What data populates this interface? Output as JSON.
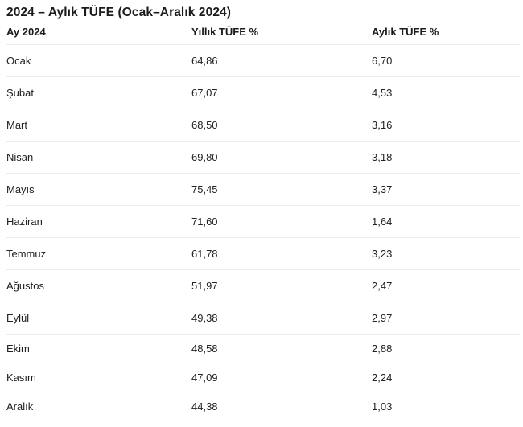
{
  "page": {
    "title": "2024 – Aylık TÜFE (Ocak–Aralık 2024)"
  },
  "table": {
    "columns": [
      "Ay 2024",
      "Yıllık TÜFE %",
      "Aylık TÜFE %"
    ],
    "rows": [
      {
        "month": "Ocak",
        "yillik": "64,86",
        "aylik": "6,70"
      },
      {
        "month": "Şubat",
        "yillik": "67,07",
        "aylik": "4,53"
      },
      {
        "month": "Mart",
        "yillik": "68,50",
        "aylik": "3,16"
      },
      {
        "month": "Nisan",
        "yillik": "69,80",
        "aylik": "3,18"
      },
      {
        "month": "Mayıs",
        "yillik": "75,45",
        "aylik": "3,37"
      },
      {
        "month": "Haziran",
        "yillik": "71,60",
        "aylik": "1,64"
      },
      {
        "month": "Temmuz",
        "yillik": "61,78",
        "aylik": "3,23"
      },
      {
        "month": "Ağustos",
        "yillik": "51,97",
        "aylik": "2,47"
      },
      {
        "month": "Eylül",
        "yillik": "49,38",
        "aylik": "2,97"
      },
      {
        "month": "Ekim",
        "yillik": "48,58",
        "aylik": "2,88"
      },
      {
        "month": "Kasım",
        "yillik": "47,09",
        "aylik": "2,24"
      },
      {
        "month": "Aralık",
        "yillik": "44,38",
        "aylik": "1,03"
      }
    ]
  },
  "chart_data": {
    "type": "table",
    "title": "2024 – Aylık TÜFE (Ocak–Aralık 2024)",
    "columns": [
      "Ay 2024",
      "Yıllık TÜFE %",
      "Aylık TÜFE %"
    ],
    "categories": [
      "Ocak",
      "Şubat",
      "Mart",
      "Nisan",
      "Mayıs",
      "Haziran",
      "Temmuz",
      "Ağustos",
      "Eylül",
      "Ekim",
      "Kasım",
      "Aralık"
    ],
    "series": [
      {
        "name": "Yıllık TÜFE %",
        "values": [
          64.86,
          67.07,
          68.5,
          69.8,
          75.45,
          71.6,
          61.78,
          51.97,
          49.38,
          48.58,
          47.09,
          44.38
        ]
      },
      {
        "name": "Aylık TÜFE %",
        "values": [
          6.7,
          4.53,
          3.16,
          3.18,
          3.37,
          1.64,
          3.23,
          2.47,
          2.97,
          2.88,
          2.24,
          1.03
        ]
      }
    ],
    "colors": {
      "text": "#1b1b1b",
      "row_separator": "#ececec",
      "background": "#ffffff"
    }
  }
}
